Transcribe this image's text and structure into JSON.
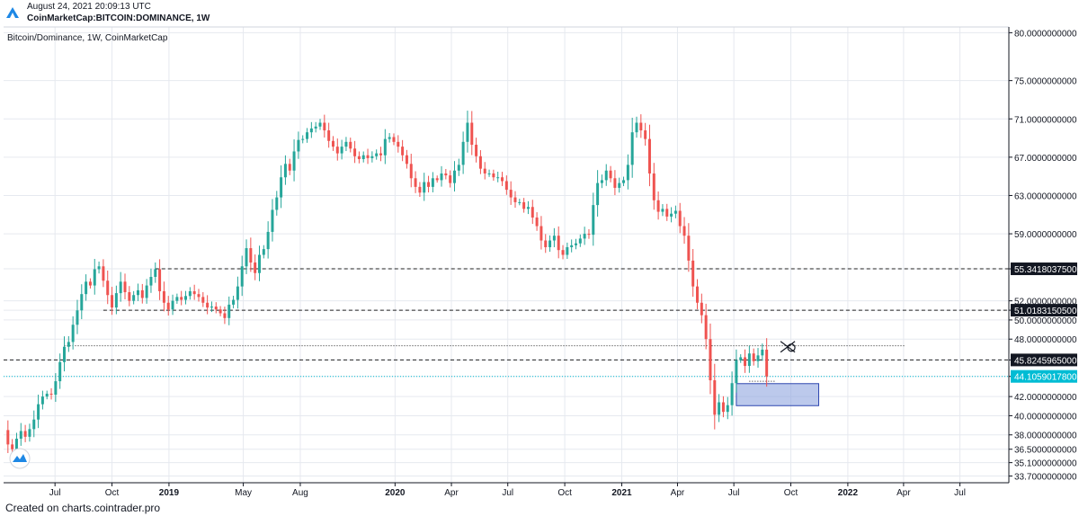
{
  "header": {
    "date": "August 24, 2021 20:09:13 UTC",
    "symbol": "CoinMarketCap:BITCOIN:DOMINANCE, 1W"
  },
  "footer": {
    "credit": "Created on charts.cointrader.pro"
  },
  "colors": {
    "up": "#26a69a",
    "down": "#ef5350",
    "grid": "#e6e9ef",
    "current_price": "#00bcd4",
    "zone_fill": "#8fa5e0",
    "zone_stroke": "#2e46b0",
    "hline": "#222222"
  },
  "chart_data": {
    "type": "candlestick",
    "title": "Bitcoin/Dominance, 1W, CoinMarketCap",
    "y_axis_side": "right",
    "ylim": [
      33.0,
      80.6
    ],
    "y_ticks": [
      "80.0000000000",
      "75.0000000000",
      "71.0000000000",
      "67.0000000000",
      "63.0000000000",
      "59.0000000000",
      "55.3418037500",
      "52.0000000000",
      "51.0183150500",
      "50.0000000000",
      "48.0000000000",
      "45.8245965000",
      "44.1059017800",
      "42.0000000000",
      "40.0000000000",
      "38.0000000000",
      "36.5000000000",
      "35.1000000000",
      "33.7000000000"
    ],
    "x_ticks": [
      {
        "label": "Jul",
        "x": "2018-07-01",
        "bold": false
      },
      {
        "label": "Oct",
        "x": "2018-10-01",
        "bold": false
      },
      {
        "label": "2019",
        "x": "2019-01-01",
        "bold": true
      },
      {
        "label": "May",
        "x": "2019-05-01",
        "bold": false
      },
      {
        "label": "Aug",
        "x": "2019-08-01",
        "bold": false
      },
      {
        "label": "2020",
        "x": "2020-01-01",
        "bold": true
      },
      {
        "label": "Apr",
        "x": "2020-04-01",
        "bold": false
      },
      {
        "label": "Jul",
        "x": "2020-07-01",
        "bold": false
      },
      {
        "label": "Oct",
        "x": "2020-10-01",
        "bold": false
      },
      {
        "label": "2021",
        "x": "2021-01-01",
        "bold": true
      },
      {
        "label": "Apr",
        "x": "2021-04-01",
        "bold": false
      },
      {
        "label": "Jul",
        "x": "2021-07-01",
        "bold": false
      },
      {
        "label": "Oct",
        "x": "2021-10-01",
        "bold": false
      },
      {
        "label": "2022",
        "x": "2022-01-01",
        "bold": true
      },
      {
        "label": "Apr",
        "x": "2022-04-01",
        "bold": false
      },
      {
        "label": "Jul",
        "x": "2022-07-01",
        "bold": false
      }
    ],
    "x_range": [
      "2018-04-09",
      "2022-09-18"
    ],
    "close_series": [
      [
        "2018-04-09",
        38.5
      ],
      [
        "2018-04-16",
        37.0
      ],
      [
        "2018-04-23",
        36.5
      ],
      [
        "2018-04-30",
        37.6
      ],
      [
        "2018-05-07",
        38.4
      ],
      [
        "2018-05-14",
        37.8
      ],
      [
        "2018-05-21",
        38.6
      ],
      [
        "2018-05-28",
        39.6
      ],
      [
        "2018-06-04",
        41.2
      ],
      [
        "2018-06-11",
        42.0
      ],
      [
        "2018-06-18",
        42.3
      ],
      [
        "2018-06-25",
        42.2
      ],
      [
        "2018-07-02",
        43.6
      ],
      [
        "2018-07-09",
        45.6
      ],
      [
        "2018-07-16",
        47.2
      ],
      [
        "2018-07-23",
        47.7
      ],
      [
        "2018-07-30",
        49.5
      ],
      [
        "2018-08-06",
        51.0
      ],
      [
        "2018-08-13",
        52.7
      ],
      [
        "2018-08-20",
        54.0
      ],
      [
        "2018-08-27",
        53.6
      ],
      [
        "2018-09-03",
        55.3
      ],
      [
        "2018-09-10",
        55.6
      ],
      [
        "2018-09-17",
        54.1
      ],
      [
        "2018-09-24",
        52.6
      ],
      [
        "2018-10-01",
        51.3
      ],
      [
        "2018-10-08",
        52.8
      ],
      [
        "2018-10-15",
        54.0
      ],
      [
        "2018-10-22",
        52.9
      ],
      [
        "2018-10-29",
        52.0
      ],
      [
        "2018-11-05",
        52.6
      ],
      [
        "2018-11-12",
        53.1
      ],
      [
        "2018-11-19",
        52.3
      ],
      [
        "2018-11-26",
        53.6
      ],
      [
        "2018-12-03",
        54.5
      ],
      [
        "2018-12-10",
        55.3
      ],
      [
        "2018-12-17",
        53.0
      ],
      [
        "2018-12-24",
        51.8
      ],
      [
        "2018-12-31",
        51.1
      ],
      [
        "2019-01-07",
        52.0
      ],
      [
        "2019-01-14",
        52.4
      ],
      [
        "2019-01-21",
        52.1
      ],
      [
        "2019-01-28",
        52.5
      ],
      [
        "2019-02-04",
        53.0
      ],
      [
        "2019-02-11",
        52.7
      ],
      [
        "2019-02-18",
        52.4
      ],
      [
        "2019-02-25",
        51.8
      ],
      [
        "2019-03-04",
        51.3
      ],
      [
        "2019-03-11",
        51.4
      ],
      [
        "2019-03-18",
        51.1
      ],
      [
        "2019-03-25",
        50.7
      ],
      [
        "2019-04-01",
        50.2
      ],
      [
        "2019-04-08",
        51.6
      ],
      [
        "2019-04-15",
        52.1
      ],
      [
        "2019-04-22",
        53.5
      ],
      [
        "2019-04-29",
        55.6
      ],
      [
        "2019-05-06",
        57.5
      ],
      [
        "2019-05-13",
        56.0
      ],
      [
        "2019-05-20",
        54.9
      ],
      [
        "2019-05-27",
        56.8
      ],
      [
        "2019-06-03",
        57.4
      ],
      [
        "2019-06-10",
        59.2
      ],
      [
        "2019-06-17",
        61.5
      ],
      [
        "2019-06-24",
        62.8
      ],
      [
        "2019-07-01",
        64.9
      ],
      [
        "2019-07-08",
        66.3
      ],
      [
        "2019-07-15",
        65.6
      ],
      [
        "2019-07-22",
        67.6
      ],
      [
        "2019-07-29",
        68.8
      ],
      [
        "2019-08-05",
        68.9
      ],
      [
        "2019-08-12",
        69.6
      ],
      [
        "2019-08-19",
        70.0
      ],
      [
        "2019-08-26",
        70.2
      ],
      [
        "2019-09-02",
        70.6
      ],
      [
        "2019-09-09",
        69.8
      ],
      [
        "2019-09-16",
        68.7
      ],
      [
        "2019-09-23",
        68.1
      ],
      [
        "2019-09-30",
        67.4
      ],
      [
        "2019-10-07",
        68.1
      ],
      [
        "2019-10-14",
        68.6
      ],
      [
        "2019-10-21",
        67.9
      ],
      [
        "2019-10-28",
        67.1
      ],
      [
        "2019-11-04",
        66.8
      ],
      [
        "2019-11-11",
        67.2
      ],
      [
        "2019-11-18",
        66.9
      ],
      [
        "2019-11-25",
        67.1
      ],
      [
        "2019-12-02",
        67.4
      ],
      [
        "2019-12-09",
        67.2
      ],
      [
        "2019-12-16",
        68.9
      ],
      [
        "2019-12-23",
        69.1
      ],
      [
        "2019-12-30",
        68.6
      ],
      [
        "2020-01-06",
        68.1
      ],
      [
        "2020-01-13",
        67.2
      ],
      [
        "2020-01-20",
        66.3
      ],
      [
        "2020-01-27",
        64.8
      ],
      [
        "2020-02-03",
        63.9
      ],
      [
        "2020-02-10",
        63.3
      ],
      [
        "2020-02-17",
        64.4
      ],
      [
        "2020-02-24",
        63.9
      ],
      [
        "2020-03-02",
        64.8
      ],
      [
        "2020-03-09",
        64.6
      ],
      [
        "2020-03-16",
        65.3
      ],
      [
        "2020-03-23",
        65.1
      ],
      [
        "2020-03-30",
        64.3
      ],
      [
        "2020-04-06",
        65.6
      ],
      [
        "2020-04-13",
        66.2
      ],
      [
        "2020-04-20",
        68.6
      ],
      [
        "2020-04-27",
        70.6
      ],
      [
        "2020-05-04",
        68.3
      ],
      [
        "2020-05-11",
        67.1
      ],
      [
        "2020-05-18",
        65.8
      ],
      [
        "2020-05-25",
        65.3
      ],
      [
        "2020-06-01",
        65.3
      ],
      [
        "2020-06-08",
        64.9
      ],
      [
        "2020-06-15",
        64.9
      ],
      [
        "2020-06-22",
        64.5
      ],
      [
        "2020-06-29",
        63.6
      ],
      [
        "2020-07-06",
        62.8
      ],
      [
        "2020-07-13",
        62.3
      ],
      [
        "2020-07-20",
        62.3
      ],
      [
        "2020-07-27",
        61.6
      ],
      [
        "2020-08-03",
        61.8
      ],
      [
        "2020-08-10",
        60.7
      ],
      [
        "2020-08-17",
        59.8
      ],
      [
        "2020-08-24",
        58.3
      ],
      [
        "2020-08-31",
        57.6
      ],
      [
        "2020-09-07",
        58.3
      ],
      [
        "2020-09-14",
        58.8
      ],
      [
        "2020-09-21",
        57.3
      ],
      [
        "2020-09-28",
        56.8
      ],
      [
        "2020-10-05",
        57.6
      ],
      [
        "2020-10-12",
        57.8
      ],
      [
        "2020-10-19",
        58.0
      ],
      [
        "2020-10-26",
        58.5
      ],
      [
        "2020-11-02",
        59.0
      ],
      [
        "2020-11-09",
        58.9
      ],
      [
        "2020-11-16",
        62.0
      ],
      [
        "2020-11-23",
        64.3
      ],
      [
        "2020-11-30",
        64.6
      ],
      [
        "2020-12-07",
        65.6
      ],
      [
        "2020-12-14",
        64.8
      ],
      [
        "2020-12-21",
        63.8
      ],
      [
        "2020-12-28",
        64.3
      ],
      [
        "2021-01-04",
        64.6
      ],
      [
        "2021-01-11",
        66.2
      ],
      [
        "2021-01-18",
        69.6
      ],
      [
        "2021-01-25",
        70.6
      ],
      [
        "2021-02-01",
        69.8
      ],
      [
        "2021-02-08",
        68.9
      ],
      [
        "2021-02-15",
        65.3
      ],
      [
        "2021-02-22",
        62.5
      ],
      [
        "2021-03-01",
        61.3
      ],
      [
        "2021-03-08",
        61.6
      ],
      [
        "2021-03-15",
        60.8
      ],
      [
        "2021-03-22",
        61.1
      ],
      [
        "2021-03-29",
        61.4
      ],
      [
        "2021-04-05",
        59.8
      ],
      [
        "2021-04-12",
        58.8
      ],
      [
        "2021-04-19",
        56.2
      ],
      [
        "2021-04-26",
        53.5
      ],
      [
        "2021-05-03",
        51.8
      ],
      [
        "2021-05-10",
        50.5
      ],
      [
        "2021-05-17",
        48.0
      ],
      [
        "2021-05-24",
        43.7
      ],
      [
        "2021-05-31",
        40.1
      ],
      [
        "2021-06-07",
        41.4
      ],
      [
        "2021-06-14",
        40.4
      ],
      [
        "2021-06-21",
        41.1
      ],
      [
        "2021-06-28",
        43.4
      ],
      [
        "2021-07-05",
        45.8
      ],
      [
        "2021-07-12",
        46.1
      ],
      [
        "2021-07-19",
        45.2
      ],
      [
        "2021-07-26",
        46.5
      ],
      [
        "2021-08-02",
        45.7
      ],
      [
        "2021-08-09",
        46.3
      ],
      [
        "2021-08-16",
        46.9
      ],
      [
        "2021-08-23",
        44.1
      ]
    ],
    "h_levels": [
      {
        "value": 55.34180375,
        "label": "55.3418037500",
        "from": "2018-12-10",
        "style": "dashed"
      },
      {
        "value": 51.01831505,
        "label": "51.0183150500",
        "from": "2018-09-17",
        "style": "dashed"
      },
      {
        "value": 45.8245965,
        "label": "45.8245965000",
        "from": "2018-04-09",
        "style": "dashed"
      },
      {
        "value": 47.3,
        "label": "",
        "from": "2018-07-16",
        "to": "2022-04-03",
        "style": "dotted"
      },
      {
        "value": 44.10590178,
        "label": "44.1059017800",
        "from": "2018-04-09",
        "style": "current"
      },
      {
        "value": 43.6,
        "label": "",
        "from": "2021-07-26",
        "to": "2021-09-05",
        "style": "dotted"
      }
    ],
    "zone": {
      "from": "2021-07-05",
      "to": "2021-11-15",
      "top": 43.35,
      "bottom": 41.05
    },
    "marker_cross": {
      "x": "2021-09-26",
      "y": 47.2
    }
  }
}
